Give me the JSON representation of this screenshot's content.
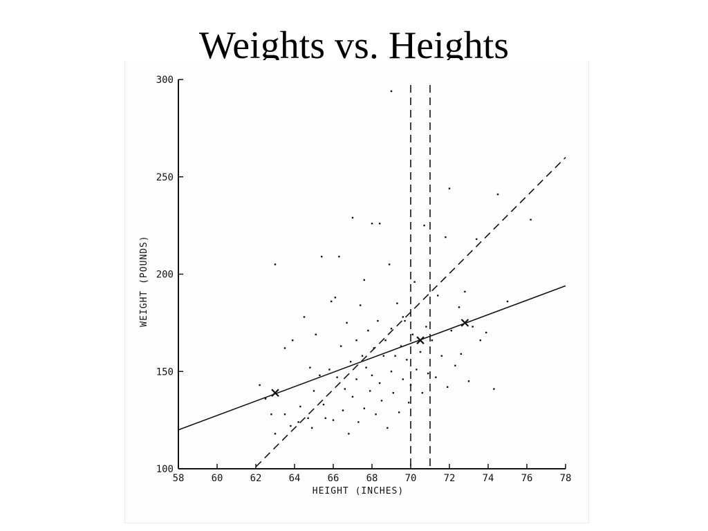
{
  "slide": {
    "title": "Weights vs. Heights"
  },
  "chart_data": {
    "type": "scatter",
    "title": "Weights vs. Heights",
    "xlabel": "HEIGHT (INCHES)",
    "ylabel": "WEIGHT (POUNDS)",
    "xlim": [
      58,
      78
    ],
    "ylim": [
      100,
      300
    ],
    "x_ticks": [
      "58",
      "60",
      "62",
      "64",
      "66",
      "68",
      "70",
      "72",
      "74",
      "76",
      "78"
    ],
    "y_ticks": [
      "100",
      "150",
      "200",
      "250",
      "300"
    ],
    "grid": false,
    "series": [
      {
        "type": "scatter",
        "points": [
          [
            62.2,
            143
          ],
          [
            62.5,
            136
          ],
          [
            62.8,
            128
          ],
          [
            63.0,
            118
          ],
          [
            63.0,
            205
          ],
          [
            63.5,
            128
          ],
          [
            63.8,
            122
          ],
          [
            63.9,
            166
          ],
          [
            64.2,
            124
          ],
          [
            64.3,
            132
          ],
          [
            64.5,
            178
          ],
          [
            64.7,
            126
          ],
          [
            64.9,
            121
          ],
          [
            65.0,
            140
          ],
          [
            65.1,
            169
          ],
          [
            65.3,
            148
          ],
          [
            65.5,
            133
          ],
          [
            65.6,
            126
          ],
          [
            65.8,
            151
          ],
          [
            65.9,
            186
          ],
          [
            66.0,
            125
          ],
          [
            66.2,
            147
          ],
          [
            66.3,
            209
          ],
          [
            66.4,
            163
          ],
          [
            66.5,
            130
          ],
          [
            66.6,
            141
          ],
          [
            66.7,
            175
          ],
          [
            66.8,
            118
          ],
          [
            66.9,
            155
          ],
          [
            67.0,
            229
          ],
          [
            67.0,
            137
          ],
          [
            67.2,
            146
          ],
          [
            67.2,
            166
          ],
          [
            67.3,
            124
          ],
          [
            67.4,
            184
          ],
          [
            67.5,
            158
          ],
          [
            67.6,
            131
          ],
          [
            67.7,
            152
          ],
          [
            67.8,
            171
          ],
          [
            67.9,
            140
          ],
          [
            68.0,
            226
          ],
          [
            68.0,
            148
          ],
          [
            68.1,
            162
          ],
          [
            68.2,
            128
          ],
          [
            68.3,
            176
          ],
          [
            68.4,
            144
          ],
          [
            68.5,
            135
          ],
          [
            68.6,
            158
          ],
          [
            68.7,
            166
          ],
          [
            68.8,
            121
          ],
          [
            68.9,
            205
          ],
          [
            69.0,
            150
          ],
          [
            69.0,
            172
          ],
          [
            69.1,
            139
          ],
          [
            69.2,
            158
          ],
          [
            69.3,
            185
          ],
          [
            69.4,
            129
          ],
          [
            69.5,
            163
          ],
          [
            69.6,
            146
          ],
          [
            69.7,
            176
          ],
          [
            69.8,
            156
          ],
          [
            69.9,
            134
          ],
          [
            70.0,
            143
          ],
          [
            70.1,
            169
          ],
          [
            70.2,
            196
          ],
          [
            70.3,
            151
          ],
          [
            70.5,
            160
          ],
          [
            70.6,
            139
          ],
          [
            70.8,
            173
          ],
          [
            70.9,
            149
          ],
          [
            71.1,
            166
          ],
          [
            71.3,
            147
          ],
          [
            71.4,
            189
          ],
          [
            71.6,
            158
          ],
          [
            71.8,
            219
          ],
          [
            71.9,
            142
          ],
          [
            72.0,
            244
          ],
          [
            72.1,
            171
          ],
          [
            72.3,
            153
          ],
          [
            72.5,
            183
          ],
          [
            72.6,
            159
          ],
          [
            72.8,
            191
          ],
          [
            73.0,
            145
          ],
          [
            73.2,
            173
          ],
          [
            73.4,
            218
          ],
          [
            73.6,
            166
          ],
          [
            73.9,
            170
          ],
          [
            74.3,
            141
          ],
          [
            74.5,
            241
          ],
          [
            75.0,
            186
          ],
          [
            76.2,
            228
          ],
          [
            69.0,
            294
          ],
          [
            69.6,
            178
          ],
          [
            70.7,
            225
          ],
          [
            65.4,
            209
          ],
          [
            66.1,
            188
          ],
          [
            68.4,
            226
          ],
          [
            63.5,
            162
          ],
          [
            64.8,
            152
          ],
          [
            67.6,
            197
          ]
        ]
      },
      {
        "name": "",
        "type": "line",
        "style": "solid",
        "x": [
          58,
          78
        ],
        "y": [
          120,
          194
        ]
      },
      {
        "name": "",
        "type": "line",
        "style": "dashed",
        "x": [
          62,
          78
        ],
        "y": [
          101,
          260
        ]
      },
      {
        "name": "",
        "type": "vline",
        "style": "dashed",
        "x": [
          70.0,
          71.0
        ],
        "y": [
          100,
          300
        ]
      },
      {
        "name": "",
        "type": "markers",
        "marker": "x",
        "x": [
          63.0,
          70.5,
          72.8
        ],
        "y": [
          139,
          166,
          175
        ]
      }
    ]
  },
  "colors": {
    "ink": "#111111",
    "background": "#ffffff"
  }
}
